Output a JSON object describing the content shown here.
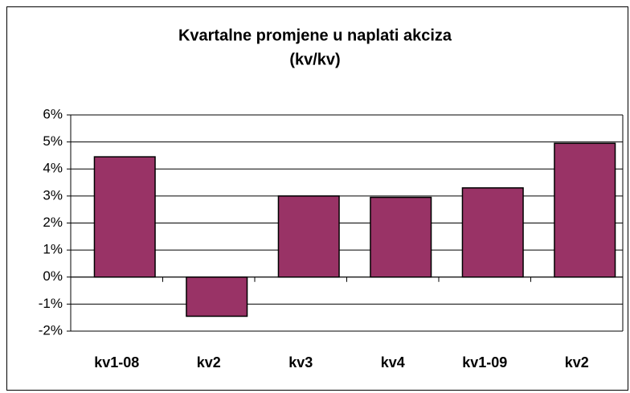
{
  "chart_data": {
    "type": "bar",
    "title": "Kvartalne promjene u naplati akciza",
    "subtitle": "(kv/kv)",
    "categories": [
      "kv1-08",
      "kv2",
      "kv3",
      "kv4",
      "kv1-09",
      "kv2"
    ],
    "values": [
      4.45,
      -1.45,
      3.0,
      2.95,
      3.3,
      4.95
    ],
    "color": "#993366",
    "ylim": [
      -2,
      6
    ],
    "yticks": [
      {
        "value": -2,
        "label": "-2%"
      },
      {
        "value": -1,
        "label": "-1%"
      },
      {
        "value": 0,
        "label": "0%"
      },
      {
        "value": 1,
        "label": "1%"
      },
      {
        "value": 2,
        "label": "2%"
      },
      {
        "value": 3,
        "label": "3%"
      },
      {
        "value": 4,
        "label": "4%"
      },
      {
        "value": 5,
        "label": "5%"
      },
      {
        "value": 6,
        "label": "6%"
      }
    ],
    "grid": true
  }
}
